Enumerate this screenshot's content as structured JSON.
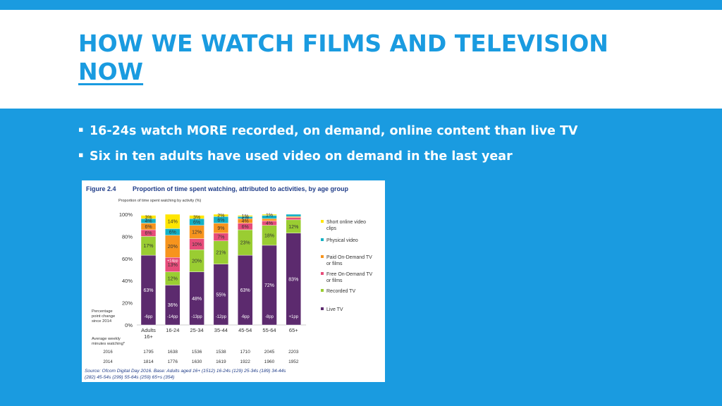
{
  "slide": {
    "title_line1": "HOW WE WATCH FILMS AND TELEVISION",
    "title_line2": "NOW",
    "bullets": [
      "16-24s watch MORE recorded, on demand, online content than live TV",
      "Six in ten adults have used video on demand in the last year"
    ]
  },
  "colors": {
    "background": "#1a9be0",
    "title": "#1a9be0",
    "bullet_text": "#ffffff",
    "chart_title": "#1f3c88",
    "live_tv": "#5c2a6e",
    "recorded_tv": "#9acd32",
    "free_on_demand": "#e74c7a",
    "paid_on_demand": "#f7941d",
    "physical_video": "#14b1c5",
    "short_online": "#ffe600"
  },
  "chart_data": {
    "type": "bar",
    "figure_label": "Figure 2.4",
    "title": "Proportion of time spent watching, attributed to activities, by age group",
    "ylabel": "Proportion of time spent watching by activity (%)",
    "yticks": [
      "0%",
      "20%",
      "40%",
      "60%",
      "80%",
      "100%"
    ],
    "ylim": [
      0,
      100
    ],
    "categories": [
      "Adults 16+",
      "16-24",
      "25-34",
      "35-44",
      "45-54",
      "55-64",
      "65+"
    ],
    "series": [
      {
        "name": "Live TV",
        "color": "#5c2a6e",
        "values": [
          63,
          36,
          48,
          55,
          63,
          72,
          83
        ],
        "labels": [
          "63%",
          "36%",
          "48%",
          "55%",
          "63%",
          "72%",
          "83%"
        ]
      },
      {
        "name": "Recorded TV",
        "color": "#9acd32",
        "values": [
          17,
          12,
          20,
          21,
          23,
          18,
          12
        ],
        "labels": [
          "17%",
          "12%",
          "20%",
          "21%",
          "23%",
          "18%",
          "12%"
        ]
      },
      {
        "name": "Free On-Demand TV or films",
        "color": "#e74c7a",
        "values": [
          6,
          13,
          10,
          7,
          6,
          4,
          2
        ],
        "labels": [
          "6%",
          "13%",
          "10%",
          "7%",
          "6%",
          "4%",
          ""
        ]
      },
      {
        "name": "Paid On-Demand TV or films",
        "color": "#f7941d",
        "values": [
          6,
          20,
          12,
          9,
          4,
          2,
          1
        ],
        "labels": [
          "6%",
          "20%",
          "12%",
          "9%",
          "4%",
          "",
          ""
        ]
      },
      {
        "name": "Physical video",
        "color": "#14b1c5",
        "values": [
          4,
          6,
          6,
          6,
          2,
          3,
          2
        ],
        "labels": [
          "4%",
          "6%",
          "6%",
          "6%",
          "2%",
          "",
          ""
        ]
      },
      {
        "name": "Short online video clips",
        "color": "#ffe600",
        "values": [
          3,
          14,
          3,
          2,
          1,
          1,
          1
        ],
        "labels": [
          "3%",
          "14%",
          "3%",
          "2%",
          "1%",
          "1%",
          ""
        ]
      }
    ],
    "legend": {
      "placement": "right",
      "items": [
        "Short online video clips",
        "Physical video",
        "Paid On-Demand TV or films",
        "Free On-Demand TV or films",
        "Recorded TV",
        "Live TV"
      ]
    },
    "annotation": "+14pp",
    "pp_change_label": "Percentage point change since 2014",
    "pp_change": [
      "-6pp",
      "-14pp",
      "-13pp",
      "-12pp",
      "-6pp",
      "-8pp",
      "+1pp"
    ],
    "minutes_label": "Average weekly minutes watching*",
    "minutes": [
      {
        "year": "2016",
        "values": [
          "1795",
          "1638",
          "1536",
          "1538",
          "1710",
          "2045",
          "2203"
        ]
      },
      {
        "year": "2014",
        "values": [
          "1814",
          "1776",
          "1630",
          "1619",
          "1922",
          "1960",
          "1952"
        ]
      }
    ],
    "source": "Source: Ofcom Digital Day 2016. Base: Adults aged 16+ (1512) 16-24s (129) 25-34s (189) 34-44s (282) 45-54s (299) 55-64s (259) 65+s (354)"
  }
}
